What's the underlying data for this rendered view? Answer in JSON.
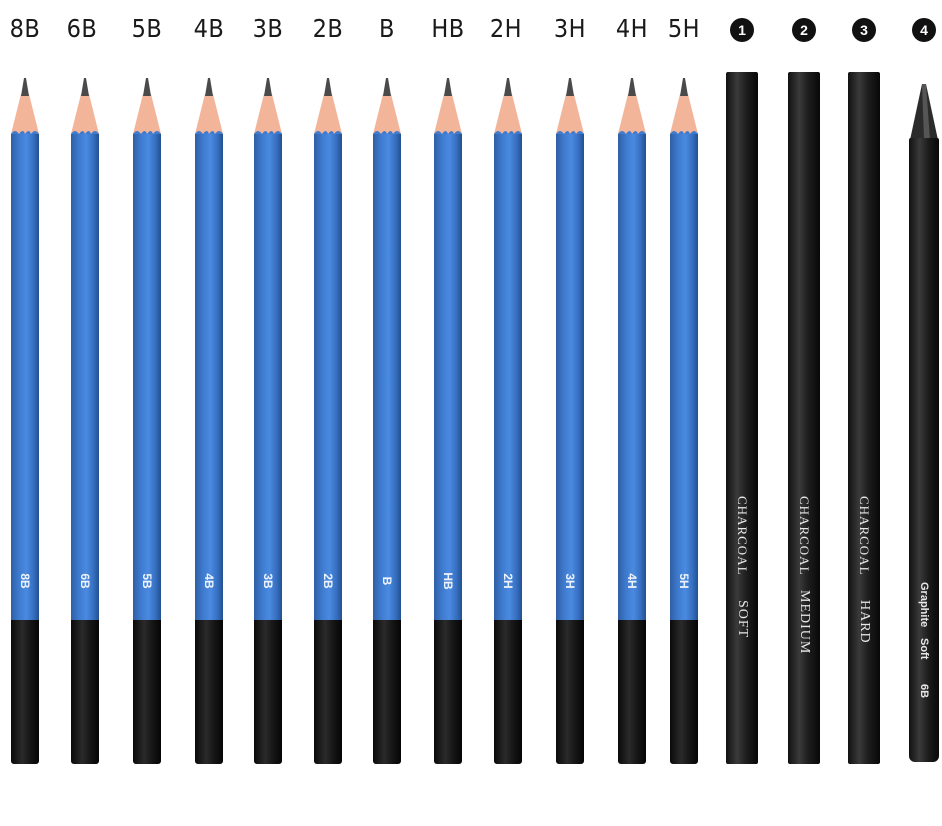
{
  "graphite_pencils": [
    {
      "grade": "8B",
      "stamp": "8B"
    },
    {
      "grade": "6B",
      "stamp": "6B"
    },
    {
      "grade": "5B",
      "stamp": "5B"
    },
    {
      "grade": "4B",
      "stamp": "4B"
    },
    {
      "grade": "3B",
      "stamp": "3B"
    },
    {
      "grade": "2B",
      "stamp": "2B"
    },
    {
      "grade": "B",
      "stamp": "B"
    },
    {
      "grade": "HB",
      "stamp": "HB"
    },
    {
      "grade": "2H",
      "stamp": "2H"
    },
    {
      "grade": "3H",
      "stamp": "3H"
    },
    {
      "grade": "4H",
      "stamp": "4H"
    },
    {
      "grade": "5H",
      "stamp": "5H"
    }
  ],
  "special_pencils": [
    {
      "badge": "1",
      "name": "CHARCOAL",
      "grade": "SOFT"
    },
    {
      "badge": "2",
      "name": "CHARCOAL",
      "grade": "MEDIUM"
    },
    {
      "badge": "3",
      "name": "CHARCOAL",
      "grade": "HARD"
    },
    {
      "badge": "4",
      "name": "Graphite",
      "grade": "Soft",
      "extra": "6B"
    }
  ],
  "colors": {
    "pencil_body": "#3f7cd0",
    "pencil_end": "#111111",
    "wood": "#f3b59a",
    "charcoal": "#1f1f1f"
  }
}
